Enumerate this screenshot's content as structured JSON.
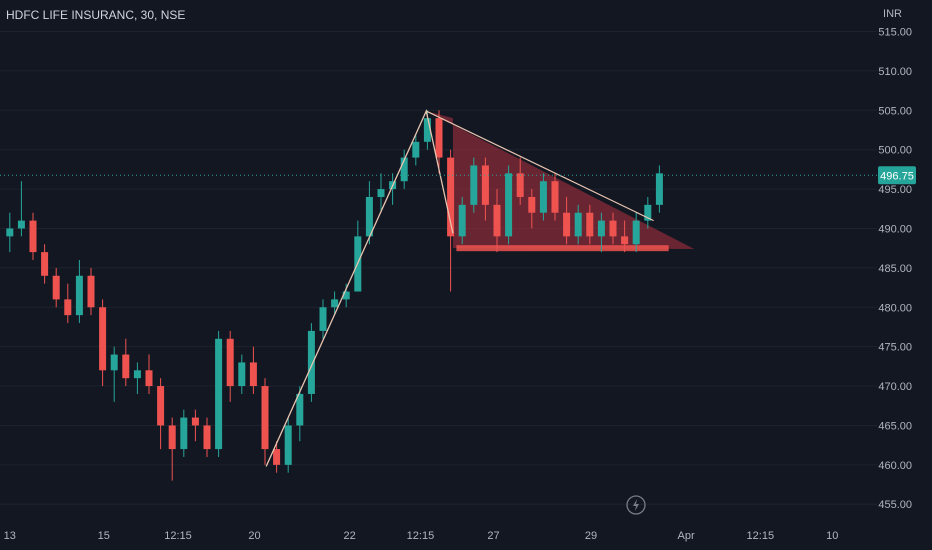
{
  "header": {
    "symbol": "HDFC LIFE INSURANC, 30, NSE",
    "currency": "INR"
  },
  "colors": {
    "background": "#131722",
    "up": "#26a69a",
    "down": "#ef5350",
    "grid": "#1e222d",
    "axis_text": "#b2b5be",
    "last_price_line": "#26a69a",
    "pattern_fill": "#b2323f",
    "trendline": "#e8c4b0"
  },
  "chart_data": {
    "type": "candlestick",
    "ylim": [
      453,
      519
    ],
    "y_ticks": [
      "515.00",
      "510.00",
      "505.00",
      "500.00",
      "495.00",
      "490.00",
      "485.00",
      "480.00",
      "475.00",
      "470.00",
      "465.00",
      "460.00",
      "455.00"
    ],
    "x_ticks": [
      "13",
      "15",
      "12:15",
      "20",
      "22",
      "12:15",
      "27",
      "29",
      "Apr",
      "12:15",
      "10"
    ],
    "last_price": "496.75",
    "candles": [
      {
        "o": 489,
        "h": 492,
        "l": 487,
        "c": 490
      },
      {
        "o": 490,
        "h": 496,
        "l": 489,
        "c": 491
      },
      {
        "o": 491,
        "h": 492,
        "l": 486,
        "c": 487
      },
      {
        "o": 487,
        "h": 488,
        "l": 483,
        "c": 484
      },
      {
        "o": 484,
        "h": 485,
        "l": 480,
        "c": 481
      },
      {
        "o": 481,
        "h": 483,
        "l": 478,
        "c": 479
      },
      {
        "o": 479,
        "h": 486,
        "l": 478,
        "c": 484
      },
      {
        "o": 484,
        "h": 485,
        "l": 479,
        "c": 480
      },
      {
        "o": 480,
        "h": 481,
        "l": 470,
        "c": 472
      },
      {
        "o": 472,
        "h": 475,
        "l": 468,
        "c": 474
      },
      {
        "o": 474,
        "h": 476,
        "l": 470,
        "c": 471
      },
      {
        "o": 471,
        "h": 473,
        "l": 469,
        "c": 472
      },
      {
        "o": 472,
        "h": 474,
        "l": 469,
        "c": 470
      },
      {
        "o": 470,
        "h": 471,
        "l": 462,
        "c": 465
      },
      {
        "o": 465,
        "h": 466,
        "l": 458,
        "c": 462
      },
      {
        "o": 462,
        "h": 467,
        "l": 461,
        "c": 466
      },
      {
        "o": 466,
        "h": 467,
        "l": 463,
        "c": 465
      },
      {
        "o": 465,
        "h": 466,
        "l": 461,
        "c": 462
      },
      {
        "o": 462,
        "h": 477,
        "l": 461,
        "c": 476
      },
      {
        "o": 476,
        "h": 477,
        "l": 468,
        "c": 470
      },
      {
        "o": 470,
        "h": 474,
        "l": 469,
        "c": 473
      },
      {
        "o": 473,
        "h": 475,
        "l": 469,
        "c": 470
      },
      {
        "o": 470,
        "h": 471,
        "l": 460,
        "c": 462
      },
      {
        "o": 462,
        "h": 463,
        "l": 459,
        "c": 460
      },
      {
        "o": 460,
        "h": 466,
        "l": 459,
        "c": 465
      },
      {
        "o": 465,
        "h": 470,
        "l": 463,
        "c": 469
      },
      {
        "o": 469,
        "h": 478,
        "l": 468,
        "c": 477
      },
      {
        "o": 477,
        "h": 481,
        "l": 476,
        "c": 480
      },
      {
        "o": 480,
        "h": 482,
        "l": 479,
        "c": 481
      },
      {
        "o": 481,
        "h": 483,
        "l": 480,
        "c": 482
      },
      {
        "o": 482,
        "h": 491,
        "l": 482,
        "c": 489
      },
      {
        "o": 489,
        "h": 496,
        "l": 488,
        "c": 494
      },
      {
        "o": 494,
        "h": 497,
        "l": 492,
        "c": 495
      },
      {
        "o": 495,
        "h": 497,
        "l": 493,
        "c": 496
      },
      {
        "o": 496,
        "h": 500,
        "l": 495,
        "c": 499
      },
      {
        "o": 499,
        "h": 502,
        "l": 498,
        "c": 501
      },
      {
        "o": 501,
        "h": 505,
        "l": 500,
        "c": 504
      },
      {
        "o": 504,
        "h": 505,
        "l": 497,
        "c": 499
      },
      {
        "o": 499,
        "h": 500,
        "l": 482,
        "c": 489
      },
      {
        "o": 489,
        "h": 494,
        "l": 488,
        "c": 493
      },
      {
        "o": 493,
        "h": 499,
        "l": 492,
        "c": 498
      },
      {
        "o": 498,
        "h": 499,
        "l": 491,
        "c": 493
      },
      {
        "o": 493,
        "h": 495,
        "l": 487,
        "c": 489
      },
      {
        "o": 489,
        "h": 498,
        "l": 488,
        "c": 497
      },
      {
        "o": 497,
        "h": 499,
        "l": 493,
        "c": 494
      },
      {
        "o": 494,
        "h": 495,
        "l": 490,
        "c": 492
      },
      {
        "o": 492,
        "h": 497,
        "l": 491,
        "c": 496
      },
      {
        "o": 496,
        "h": 497,
        "l": 491,
        "c": 492
      },
      {
        "o": 492,
        "h": 494,
        "l": 488,
        "c": 489
      },
      {
        "o": 489,
        "h": 493,
        "l": 488,
        "c": 492
      },
      {
        "o": 492,
        "h": 493,
        "l": 488,
        "c": 489
      },
      {
        "o": 489,
        "h": 492,
        "l": 487,
        "c": 491
      },
      {
        "o": 491,
        "h": 492,
        "l": 488,
        "c": 489
      },
      {
        "o": 489,
        "h": 491,
        "l": 487,
        "c": 488
      },
      {
        "o": 488,
        "h": 492,
        "l": 487,
        "c": 491
      },
      {
        "o": 491,
        "h": 494,
        "l": 490,
        "c": 493
      },
      {
        "o": 493,
        "h": 498,
        "l": 492,
        "c": 497
      }
    ],
    "pattern": {
      "type": "descending-triangle",
      "upper_line": [
        {
          "t": 36.4,
          "p": 504.9
        },
        {
          "t": 59.5,
          "p": 487.4
        }
      ],
      "base": 487.5,
      "zigzag": [
        {
          "t": 22.6,
          "p": 459.8
        },
        {
          "t": 36.4,
          "p": 504.9
        },
        {
          "t": 38.7,
          "p": 489.4
        }
      ]
    }
  }
}
